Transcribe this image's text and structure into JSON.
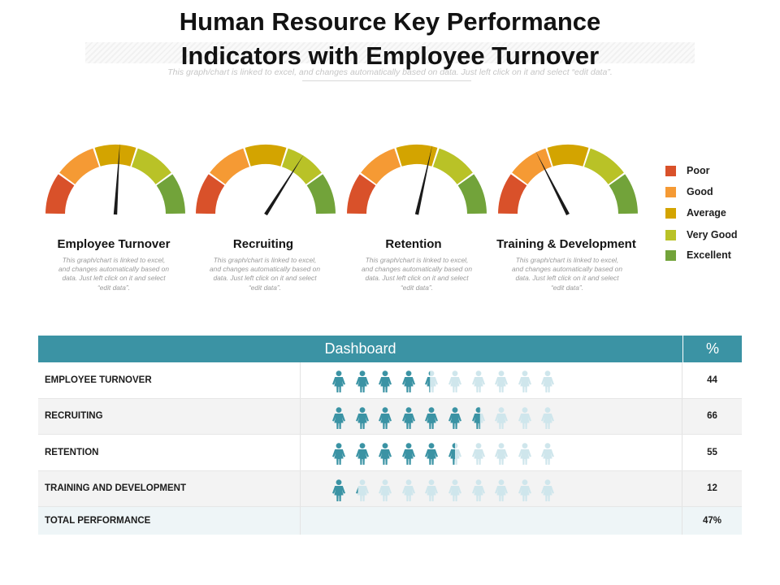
{
  "header": {
    "title": "Human Resource Key Performance\nIndicators with Employee Turnover",
    "subtitle": "This graph/chart is linked to excel, and changes automatically based on data. Just left click on it and select “edit data”."
  },
  "colors": {
    "poor": "#d9512a",
    "good": "#f59a34",
    "average": "#d3a400",
    "very_good": "#b9c227",
    "excellent": "#72a33a",
    "teal": "#3b93a4",
    "icon_active": "#3b93a4",
    "icon_inactive": "#cfe6ec"
  },
  "gauges": [
    {
      "label": "Employee Turnover",
      "description": "This graph/chart is linked to excel, and changes automatically based on data. Just left click on it and select “edit data”.",
      "needle_percent": 52
    },
    {
      "label": "Recruiting",
      "description": "This graph/chart is linked to excel, and changes automatically based on data. Just left click on it and select “edit data”.",
      "needle_percent": 68
    },
    {
      "label": "Retention",
      "description": "This graph/chart is linked to excel, and changes automatically based on data. Just left click on it and select “edit data”.",
      "needle_percent": 57
    },
    {
      "label": "Training & Development",
      "description": "This graph/chart is linked to excel, and changes automatically based on data. Just left click on it and select “edit data”.",
      "needle_percent": 35
    }
  ],
  "legend": [
    {
      "label": "Poor",
      "color": "#d9512a"
    },
    {
      "label": "Good",
      "color": "#f59a34"
    },
    {
      "label": "Average",
      "color": "#d3a400"
    },
    {
      "label": "Very Good",
      "color": "#b9c227"
    },
    {
      "label": "Excellent",
      "color": "#72a33a"
    }
  ],
  "table": {
    "header": {
      "main": "Dashboard",
      "pct": "%"
    },
    "rows": [
      {
        "name": "EMPLOYEE TURNOVER",
        "pct": "44",
        "value": 44
      },
      {
        "name": "RECRUITING",
        "pct": "66",
        "value": 66
      },
      {
        "name": "RETENTION",
        "pct": "55",
        "value": 55
      },
      {
        "name": "TRAINING AND DEVELOPMENT",
        "pct": "12",
        "value": 12
      }
    ],
    "total": {
      "name": "TOTAL PERFORMANCE",
      "pct": "47%"
    }
  }
}
